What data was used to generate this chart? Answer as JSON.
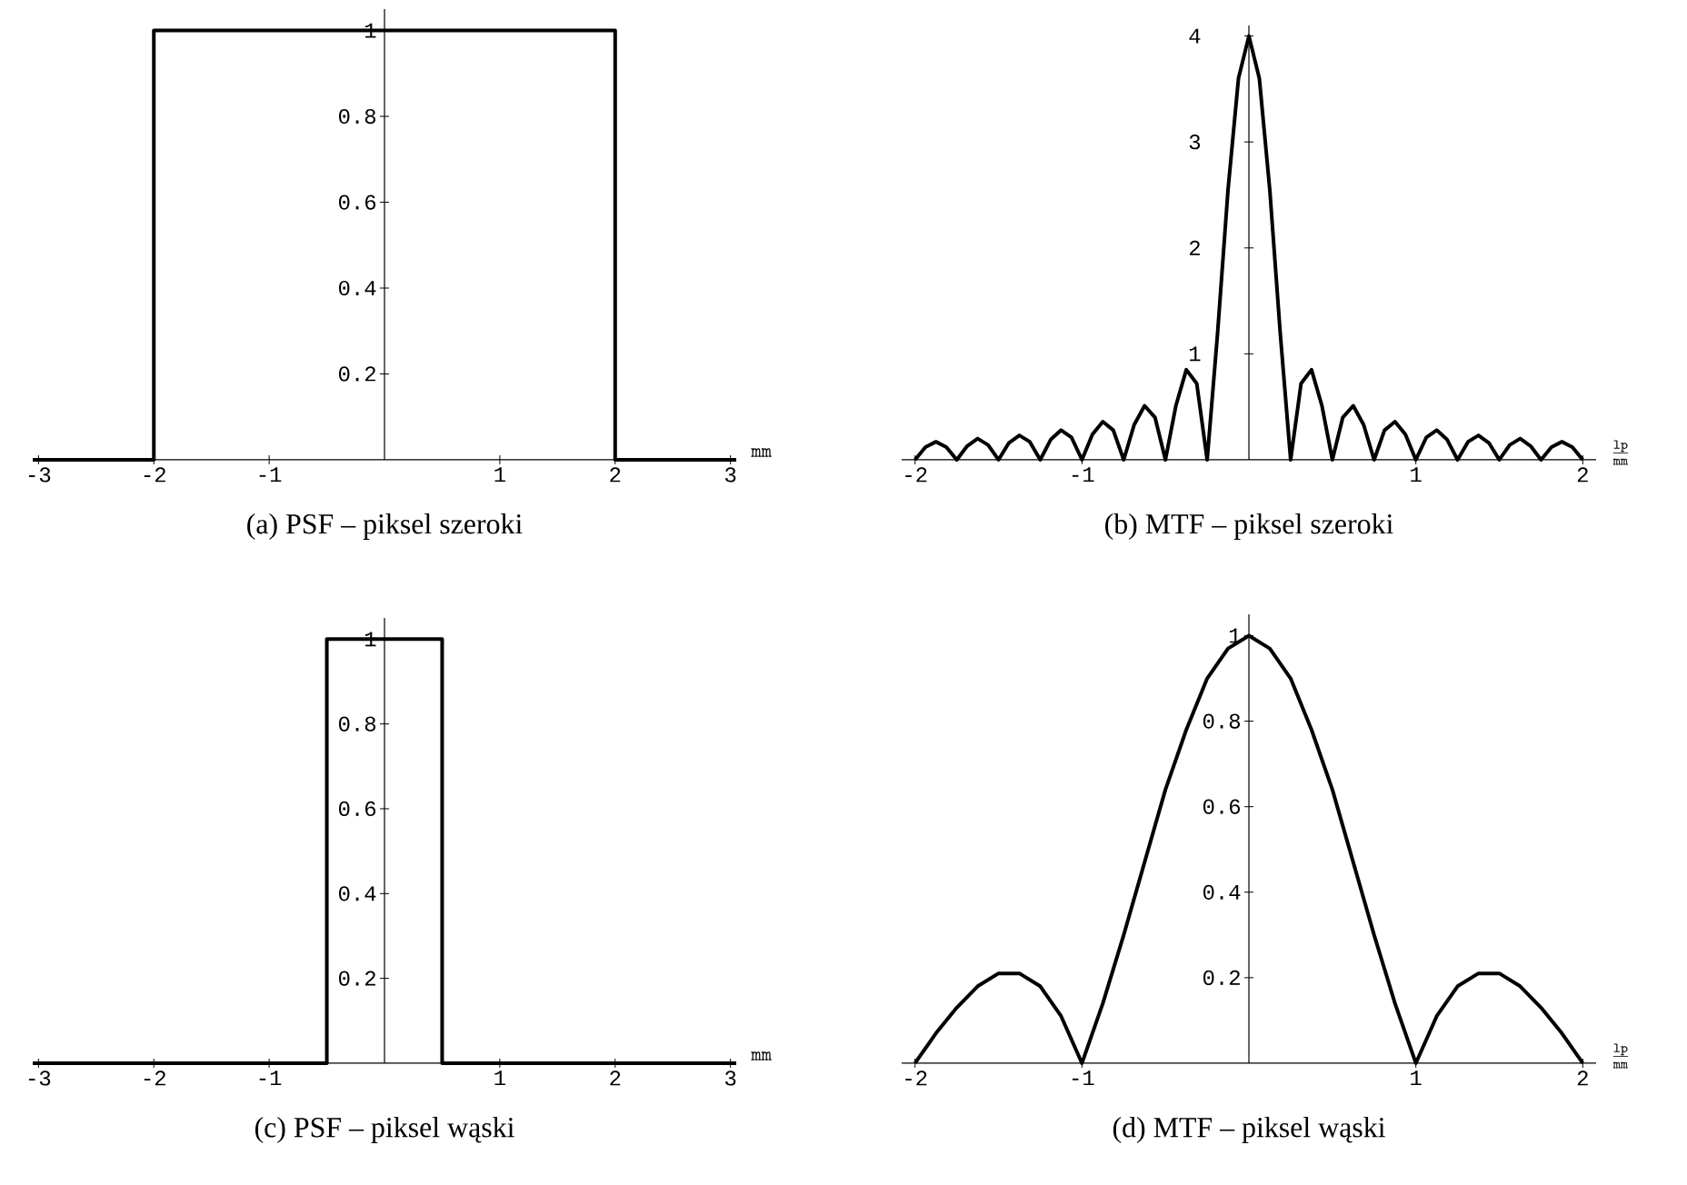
{
  "chart_data": [
    {
      "type": "line",
      "title": "(a) PSF – piksel szeroki",
      "xlabel": "\\mathtt{mm}",
      "xlim": [
        -3.05,
        3.05
      ],
      "ylim": [
        0,
        1.05
      ],
      "xticks": [
        -3,
        -2,
        -1,
        1,
        2,
        3
      ],
      "yticks": [
        0.2,
        0.4,
        0.6,
        0.8,
        1
      ],
      "series": [
        {
          "color": "#000000",
          "x": [
            -3.05,
            -2,
            -2,
            2,
            2,
            3.05
          ],
          "values": [
            0,
            0,
            1,
            1,
            0,
            0
          ]
        }
      ]
    },
    {
      "type": "line",
      "title": "(b) MTF – piksel szeroki",
      "xlabel": "\\frac{\\mathtt{lp}}{\\mathtt{mm}}",
      "xlim": [
        -2.08,
        2.08
      ],
      "ylim": [
        0,
        4.1
      ],
      "xticks": [
        -2,
        -1,
        1,
        2
      ],
      "yticks": [
        1,
        2,
        3,
        4
      ],
      "series": [
        {
          "color": "#000000",
          "x": [
            -2,
            -1.9375,
            -1.875,
            -1.8125,
            -1.75,
            -1.6875,
            -1.625,
            -1.5625,
            -1.5,
            -1.4375,
            -1.375,
            -1.3125,
            -1.25,
            -1.1875,
            -1.125,
            -1.0625,
            -1,
            -0.9375,
            -0.875,
            -0.8125,
            -0.75,
            -0.6875,
            -0.625,
            -0.5625,
            -0.5,
            -0.4375,
            -0.375,
            -0.3125,
            -0.25,
            -0.1875,
            -0.125,
            -0.0625,
            0,
            0.0625,
            0.125,
            0.1875,
            0.25,
            0.3125,
            0.375,
            0.4375,
            0.5,
            0.5625,
            0.625,
            0.6875,
            0.75,
            0.8125,
            0.875,
            0.9375,
            1,
            1.0625,
            1.125,
            1.1875,
            1.25,
            1.3125,
            1.375,
            1.4375,
            1.5,
            1.5625,
            1.625,
            1.6875,
            1.75,
            1.8125,
            1.875,
            1.9375,
            2
          ],
          "values": [
            0,
            0.12,
            0.17,
            0.12,
            0,
            0.13,
            0.2,
            0.14,
            0,
            0.16,
            0.23,
            0.17,
            0,
            0.19,
            0.28,
            0.21,
            0,
            0.24,
            0.36,
            0.28,
            0,
            0.33,
            0.51,
            0.4,
            0,
            0.51,
            0.85,
            0.72,
            0,
            1.2,
            2.55,
            3.6,
            4,
            3.6,
            2.55,
            1.2,
            0,
            0.72,
            0.85,
            0.51,
            0,
            0.4,
            0.51,
            0.33,
            0,
            0.28,
            0.36,
            0.24,
            0,
            0.21,
            0.28,
            0.19,
            0,
            0.17,
            0.23,
            0.16,
            0,
            0.14,
            0.2,
            0.13,
            0,
            0.12,
            0.17,
            0.12,
            0
          ]
        }
      ]
    },
    {
      "type": "line",
      "title": "(c) PSF – piksel wąski",
      "xlabel": "\\mathtt{mm}",
      "xlim": [
        -3.05,
        3.05
      ],
      "ylim": [
        0,
        1.05
      ],
      "xticks": [
        -3,
        -2,
        -1,
        1,
        2,
        3
      ],
      "yticks": [
        0.2,
        0.4,
        0.6,
        0.8,
        1
      ],
      "series": [
        {
          "color": "#000000",
          "x": [
            -3.05,
            -0.5,
            -0.5,
            0.5,
            0.5,
            3.05
          ],
          "values": [
            0,
            0,
            1,
            1,
            0,
            0
          ]
        }
      ]
    },
    {
      "type": "line",
      "title": "(d) MTF – piksel wąski",
      "xlabel": "\\frac{\\mathtt{lp}}{\\mathtt{mm}}",
      "xlim": [
        -2.08,
        2.08
      ],
      "ylim": [
        0,
        1.05
      ],
      "xticks": [
        -2,
        -1,
        1,
        2
      ],
      "yticks": [
        0.2,
        0.4,
        0.6,
        0.8,
        1
      ],
      "series": [
        {
          "color": "#000000",
          "x": [
            -2,
            -1.875,
            -1.75,
            -1.625,
            -1.5,
            -1.375,
            -1.25,
            -1.125,
            -1,
            -0.875,
            -0.75,
            -0.625,
            -0.5,
            -0.375,
            -0.25,
            -0.125,
            0,
            0.125,
            0.25,
            0.375,
            0.5,
            0.625,
            0.75,
            0.875,
            1,
            1.125,
            1.25,
            1.375,
            1.5,
            1.625,
            1.75,
            1.875,
            2
          ],
          "values": [
            0,
            0.07,
            0.13,
            0.18,
            0.21,
            0.21,
            0.18,
            0.11,
            0,
            0.14,
            0.3,
            0.47,
            0.64,
            0.78,
            0.9,
            0.97,
            1,
            0.97,
            0.9,
            0.78,
            0.64,
            0.47,
            0.3,
            0.14,
            0,
            0.11,
            0.18,
            0.21,
            0.21,
            0.18,
            0.13,
            0.07,
            0
          ]
        }
      ]
    }
  ]
}
